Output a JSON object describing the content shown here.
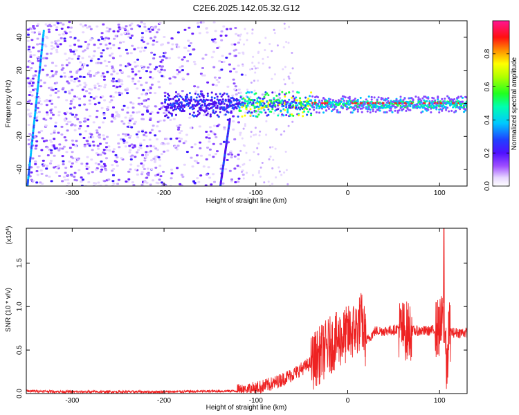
{
  "figure_title": "C2E6.2025.142.05.32.G12",
  "chart_data": [
    {
      "type": "heatmap",
      "title": "",
      "xlabel": "Height of straight line (km)",
      "ylabel": "Frequency (Hz)",
      "xlim": [
        -350,
        130
      ],
      "ylim": [
        -50,
        50
      ],
      "xticks": [
        "-300",
        "-200",
        "-100",
        "0",
        "100"
      ],
      "yticks": [
        "-40",
        "-20",
        "0",
        "20",
        "40"
      ],
      "colorbar": {
        "label": "Normalized spectral amplitude",
        "range": [
          0,
          1
        ],
        "ticks": [
          "0.0",
          "0.2",
          "0.4",
          "0.6",
          "0.8"
        ]
      },
      "features": {
        "ridge_center_hz": 0,
        "noise_region_km": [
          -350,
          -120
        ],
        "strong_signal_km": [
          -40,
          130
        ]
      }
    },
    {
      "type": "line",
      "title": "",
      "xlabel": "Height of straight line (km)",
      "ylabel": "SNR (10 * v/v)",
      "scale_label": "(x10",
      "scale_exp": "4",
      "scale_close": ")",
      "xlim": [
        -350,
        130
      ],
      "ylim": [
        0,
        1.9
      ],
      "xticks": [
        "-300",
        "-200",
        "-100",
        "0",
        "100"
      ],
      "yticks": [
        "0.0",
        "0.5",
        "1.0",
        "1.5"
      ],
      "color": "#ee2222",
      "x": [
        -350,
        -300,
        -200,
        -120,
        -100,
        -80,
        -60,
        -40,
        -30,
        -20,
        -10,
        0,
        10,
        15,
        20,
        30,
        40,
        50,
        55,
        60,
        65,
        70,
        80,
        90,
        100,
        105,
        108,
        110,
        115,
        120,
        130
      ],
      "y": [
        0.03,
        0.02,
        0.02,
        0.03,
        0.06,
        0.12,
        0.22,
        0.35,
        0.45,
        0.55,
        0.62,
        0.68,
        0.75,
        0.85,
        0.6,
        0.72,
        0.72,
        0.73,
        0.75,
        0.73,
        0.72,
        0.72,
        0.72,
        0.72,
        0.75,
        0.85,
        0.2,
        0.72,
        0.7,
        0.7,
        0.7
      ]
    }
  ]
}
